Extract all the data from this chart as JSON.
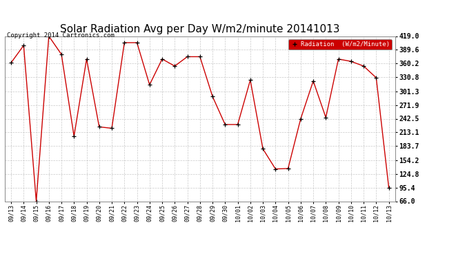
{
  "title": "Solar Radiation Avg per Day W/m2/minute 20141013",
  "copyright": "Copyright 2014 Cartronics.com",
  "legend_label": "Radiation  (W/m2/Minute)",
  "yticks": [
    66.0,
    95.4,
    124.8,
    154.2,
    183.7,
    213.1,
    242.5,
    271.9,
    301.3,
    330.8,
    360.2,
    389.6,
    419.0
  ],
  "ymin": 66.0,
  "ymax": 419.0,
  "dates": [
    "09/13",
    "09/14",
    "09/15",
    "09/16",
    "09/17",
    "09/18",
    "09/19",
    "09/20",
    "09/21",
    "09/22",
    "09/23",
    "09/24",
    "09/25",
    "09/26",
    "09/27",
    "09/28",
    "09/29",
    "09/30",
    "10/01",
    "10/02",
    "10/03",
    "10/04",
    "10/05",
    "10/06",
    "10/07",
    "10/08",
    "10/09",
    "10/10",
    "10/11",
    "10/12",
    "10/13"
  ],
  "values": [
    362,
    399,
    66,
    419,
    380,
    205,
    370,
    225,
    222,
    405,
    405,
    315,
    370,
    355,
    375,
    375,
    290,
    230,
    230,
    325,
    178,
    135,
    136,
    242,
    323,
    245,
    370,
    365,
    355,
    330,
    95
  ],
  "line_color": "#cc0000",
  "marker_color": "#000000",
  "bg_color": "#ffffff",
  "plot_bg_color": "#ffffff",
  "grid_color": "#bbbbbb",
  "legend_bg": "#cc0000",
  "legend_text_color": "#ffffff",
  "title_fontsize": 11,
  "tick_fontsize": 6.5,
  "ytick_fontsize": 7.5
}
